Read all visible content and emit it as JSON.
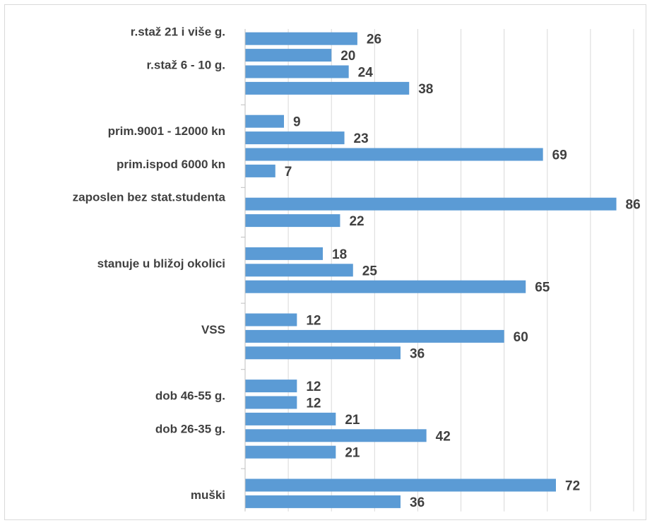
{
  "chart_data": {
    "type": "bar",
    "orientation": "horizontal",
    "title": "",
    "xlabel": "",
    "ylabel": "",
    "xlim": [
      0,
      90
    ],
    "x_ticks": [
      "0",
      "10",
      "20",
      "30",
      "40",
      "50",
      "60",
      "70",
      "80",
      "90"
    ],
    "grid": true,
    "legend": "none",
    "bar_color": "#5b9bd5",
    "groups": [
      {
        "label": "r.staž 21 i više g.",
        "bars": [
          {
            "label": "r.staž 21 i više g.",
            "value": 26
          },
          {
            "label": "",
            "value": 20
          },
          {
            "label": "r.staž 6 - 10 g.",
            "value": 24
          },
          {
            "label": "",
            "value": 38
          }
        ]
      },
      {
        "label": "prim.9001 - 12000 kn",
        "bars": [
          {
            "label": "",
            "value": 9
          },
          {
            "label": "prim.9001 - 12000 kn",
            "value": 23
          },
          {
            "label": "",
            "value": 69
          },
          {
            "label": "prim.ispod 6000 kn",
            "value": 7
          }
        ]
      },
      {
        "label": "zaposlen bez stat.studenta",
        "bars": [
          {
            "label": "zaposlen bez stat.studenta",
            "value": 86
          },
          {
            "label": "",
            "value": 22
          }
        ]
      },
      {
        "label": "stanuje u bližoj okolici",
        "bars": [
          {
            "label": "",
            "value": 18
          },
          {
            "label": "stanuje u bližoj okolici",
            "value": 25
          },
          {
            "label": "",
            "value": 65
          }
        ]
      },
      {
        "label": "VSS",
        "bars": [
          {
            "label": "",
            "value": 12
          },
          {
            "label": "VSS",
            "value": 60
          },
          {
            "label": "",
            "value": 36
          }
        ]
      },
      {
        "label": "dob 46-55 g.",
        "bars": [
          {
            "label": "",
            "value": 12
          },
          {
            "label": "dob 46-55 g.",
            "value": 12
          },
          {
            "label": "",
            "value": 21
          },
          {
            "label": "dob 26-35 g.",
            "value": 42
          },
          {
            "label": "",
            "value": 21
          }
        ]
      },
      {
        "label": "muški",
        "bars": [
          {
            "label": "",
            "value": 72
          },
          {
            "label": "muški",
            "value": 36
          }
        ]
      }
    ]
  }
}
